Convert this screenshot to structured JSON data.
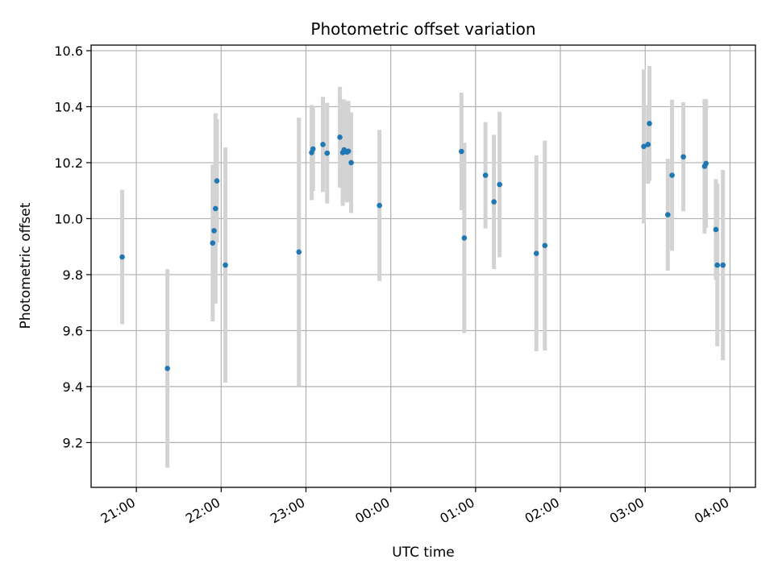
{
  "chart_data": {
    "type": "scatter",
    "title": "Photometric offset variation",
    "xlabel": "UTC time",
    "ylabel": "Photometric offset",
    "x_ticks": [
      "21:00",
      "22:00",
      "23:00",
      "00:00",
      "01:00",
      "02:00",
      "03:00",
      "04:00"
    ],
    "y_ticks": [
      "9.2",
      "9.4",
      "9.6",
      "9.8",
      "10.0",
      "10.2",
      "10.4",
      "10.6"
    ],
    "ylim": [
      9.04,
      10.62
    ],
    "grid": true,
    "colors": {
      "marker": "#1f77b4",
      "errorbar": "#d3d3d3",
      "grid": "#b0b0b0"
    },
    "series": [
      {
        "x": [
          "20:50",
          "21:22",
          "21:54",
          "21:55",
          "21:56",
          "21:57",
          "22:03",
          "22:55",
          "23:04",
          "23:05",
          "23:12",
          "23:15",
          "23:24",
          "23:26",
          "23:27",
          "23:29",
          "23:30",
          "23:32",
          "23:52",
          "00:50",
          "00:52",
          "01:07",
          "01:13",
          "01:17",
          "01:43",
          "01:49",
          "02:59",
          "03:02",
          "03:03",
          "03:16",
          "03:19",
          "03:27",
          "03:42",
          "03:43",
          "03:50",
          "03:51",
          "03:55"
        ],
        "y": [
          9.863,
          9.465,
          9.913,
          9.957,
          10.036,
          10.135,
          9.834,
          9.881,
          10.236,
          10.249,
          10.265,
          10.234,
          10.291,
          10.236,
          10.246,
          10.238,
          10.241,
          10.2,
          10.047,
          10.24,
          9.931,
          10.155,
          10.06,
          10.122,
          9.876,
          9.904,
          10.258,
          10.265,
          10.34,
          10.014,
          10.155,
          10.221,
          10.187,
          10.197,
          9.961,
          9.834,
          9.834
        ],
        "yerr": [
          0.24,
          0.355,
          0.28,
          0.23,
          0.34,
          0.22,
          0.42,
          0.48,
          0.17,
          0.15,
          0.17,
          0.18,
          0.18,
          0.19,
          0.18,
          0.18,
          0.18,
          0.18,
          0.27,
          0.21,
          0.34,
          0.19,
          0.24,
          0.26,
          0.35,
          0.375,
          0.275,
          0.14,
          0.205,
          0.2,
          0.27,
          0.195,
          0.24,
          0.23,
          0.18,
          0.29,
          0.34
        ]
      }
    ]
  }
}
